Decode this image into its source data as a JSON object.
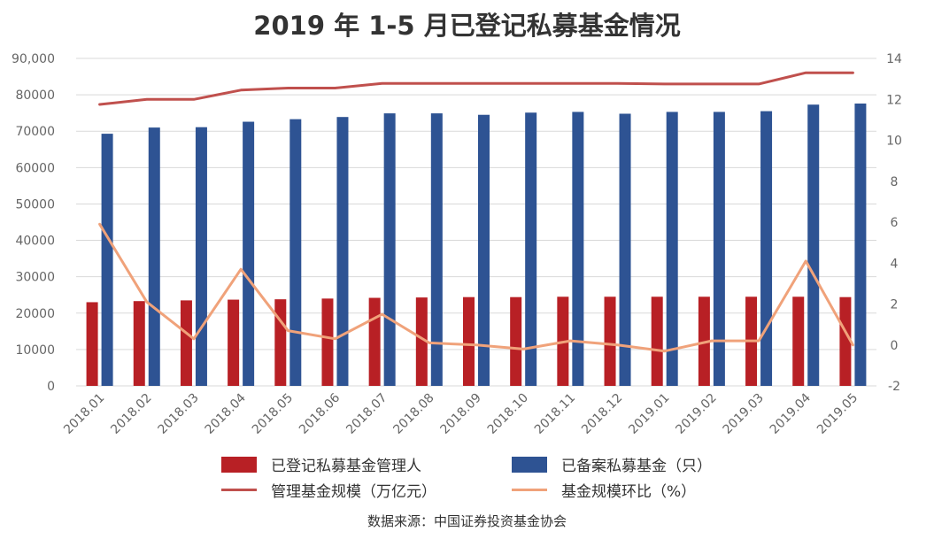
{
  "title": "2019 年 1-5 月已登记私募基金情况",
  "source": "数据来源：中国证券投资基金协会",
  "colors": {
    "managers_bar": "#B82025",
    "funds_bar": "#2E5393",
    "aum_line": "#C0504D",
    "mom_line": "#F0A27A",
    "grid": "#d9d9d9"
  },
  "chart_data": {
    "type": "bar",
    "categories": [
      "2018.01",
      "2018.02",
      "2018.03",
      "2018.04",
      "2018.05",
      "2018.06",
      "2018.07",
      "2018.08",
      "2018.09",
      "2018.10",
      "2018.11",
      "2018.12",
      "2019.01",
      "2019.02",
      "2019.03",
      "2019.04",
      "2019.05"
    ],
    "y_left": {
      "lim": [
        0,
        90000
      ],
      "ticks": [
        "0",
        "10000",
        "20000",
        "30000",
        "40000",
        "50000",
        "60000",
        "70000",
        "80000",
        "90,000"
      ]
    },
    "y_right": {
      "lim": [
        -2,
        14
      ],
      "ticks": [
        "-2",
        "0",
        "2",
        "4",
        "6",
        "8",
        "10",
        "12",
        "14"
      ]
    },
    "grid": true,
    "legend_placement": "bottom",
    "series": [
      {
        "name": "已登记私募基金管理人",
        "type": "bar",
        "axis": "left",
        "values": [
          23000,
          23300,
          23500,
          23700,
          23800,
          24000,
          24200,
          24300,
          24400,
          24400,
          24500,
          24500,
          24500,
          24500,
          24500,
          24500,
          24400
        ]
      },
      {
        "name": "已备案私募基金（只）",
        "type": "bar",
        "axis": "left",
        "values": [
          69300,
          71000,
          71100,
          72600,
          73300,
          73900,
          74900,
          74900,
          74500,
          75100,
          75300,
          74800,
          75300,
          75300,
          75500,
          77300,
          77600
        ]
      },
      {
        "name": "管理基金规模（万亿元）",
        "type": "line",
        "axis": "right",
        "values": [
          11.75,
          12.0,
          12.0,
          12.45,
          12.55,
          12.55,
          12.78,
          12.78,
          12.78,
          12.78,
          12.78,
          12.78,
          12.75,
          12.75,
          12.75,
          13.3,
          13.3
        ]
      },
      {
        "name": "基金规模环比（%）",
        "type": "line",
        "axis": "right",
        "values": [
          5.9,
          2.1,
          0.3,
          3.7,
          0.7,
          0.3,
          1.5,
          0.1,
          0.0,
          -0.2,
          0.2,
          0.0,
          -0.3,
          0.2,
          0.2,
          4.1,
          0.0
        ]
      }
    ]
  }
}
